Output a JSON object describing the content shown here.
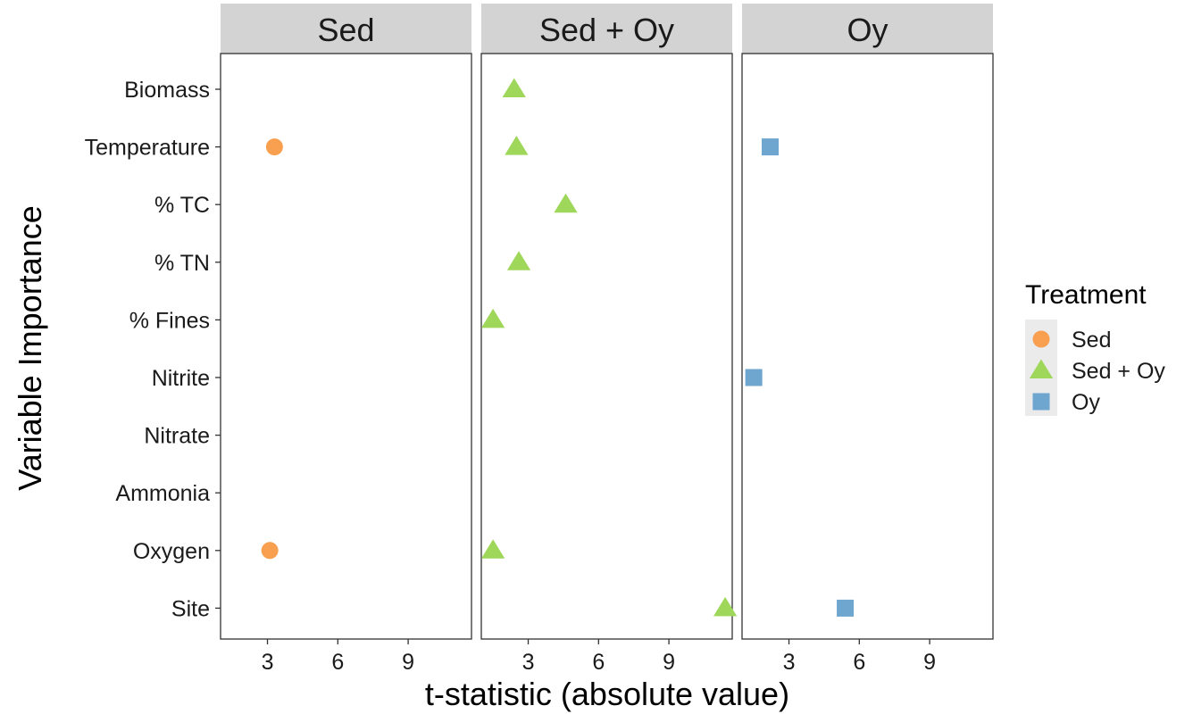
{
  "chart_data": {
    "type": "scatter",
    "facets": [
      "Sed",
      "Sed + Oy",
      "Oy"
    ],
    "categories": [
      "Biomass",
      "Temperature",
      "% TC",
      "% TN",
      "% Fines",
      "Nitrite",
      "Nitrate",
      "Ammonia",
      "Oxygen",
      "Site"
    ],
    "xlabel": "t-statistic (absolute value)",
    "ylabel": "Variable Importance",
    "xlim": [
      1.0,
      11.7
    ],
    "xticks": [
      3,
      6,
      9
    ],
    "legend": {
      "title": "Treatment",
      "placement": "right",
      "entries": [
        {
          "label": "Sed",
          "shape": "circle",
          "color": "#f8a050"
        },
        {
          "label": "Sed + Oy",
          "shape": "triangle",
          "color": "#9ed75a"
        },
        {
          "label": "Oy",
          "shape": "square",
          "color": "#6fa6cf"
        }
      ]
    },
    "series": [
      {
        "name": "Sed",
        "facet": "Sed",
        "shape": "circle",
        "color": "#f8a050",
        "points": [
          {
            "y": "Temperature",
            "x": 3.3
          },
          {
            "y": "Oxygen",
            "x": 3.1
          }
        ]
      },
      {
        "name": "Sed + Oy",
        "facet": "Sed + Oy",
        "shape": "triangle",
        "color": "#9ed75a",
        "points": [
          {
            "y": "Biomass",
            "x": 2.4
          },
          {
            "y": "Temperature",
            "x": 2.5
          },
          {
            "y": "% TC",
            "x": 4.6
          },
          {
            "y": "% TN",
            "x": 2.6
          },
          {
            "y": "% Fines",
            "x": 1.5
          },
          {
            "y": "Oxygen",
            "x": 1.5
          },
          {
            "y": "Site",
            "x": 11.4
          }
        ]
      },
      {
        "name": "Oy",
        "facet": "Oy",
        "shape": "square",
        "color": "#6fa6cf",
        "points": [
          {
            "y": "Temperature",
            "x": 2.2
          },
          {
            "y": "Nitrite",
            "x": 1.5
          },
          {
            "y": "Site",
            "x": 5.4
          }
        ]
      }
    ]
  }
}
